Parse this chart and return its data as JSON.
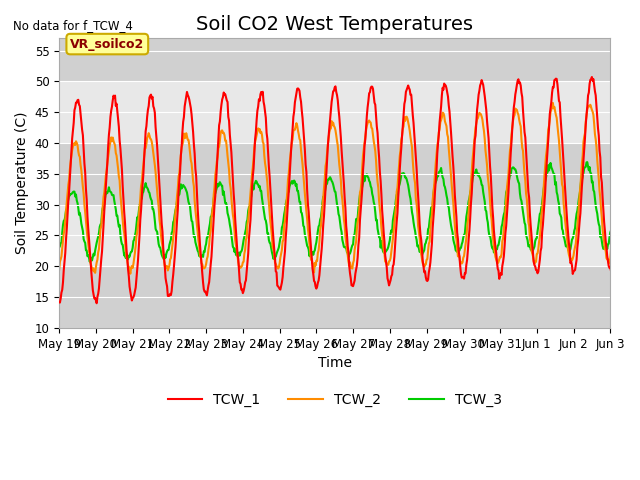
{
  "title": "Soil CO2 West Temperatures",
  "no_data_text": "No data for f_TCW_4",
  "annotation_text": "VR_soilco2",
  "xlabel": "Time",
  "ylabel": "Soil Temperature (C)",
  "ylim": [
    10,
    57
  ],
  "yticks": [
    10,
    15,
    20,
    25,
    30,
    35,
    40,
    45,
    50,
    55
  ],
  "line_colors": {
    "TCW_1": "#FF0000",
    "TCW_2": "#FF8C00",
    "TCW_3": "#00CC00"
  },
  "bg_color": "#E8E8E8",
  "fig_color": "#FFFFFF",
  "xtick_labels": [
    "May 19",
    "May 20",
    "May 21",
    "May 22",
    "May 23",
    "May 24",
    "May 25",
    "May 26",
    "May 27",
    "May 28",
    "May 29",
    "May 30",
    "May 31",
    "Jun 1",
    "Jun 2",
    "Jun 3"
  ],
  "title_fontsize": 14,
  "axis_label_fontsize": 10,
  "tick_fontsize": 8.5,
  "line_width": 1.5,
  "band_colors": [
    "#D0D0D0",
    "#E8E8E8"
  ],
  "band_ranges": [
    [
      10,
      20
    ],
    [
      20,
      30
    ],
    [
      30,
      40
    ],
    [
      40,
      50
    ],
    [
      50,
      60
    ]
  ]
}
